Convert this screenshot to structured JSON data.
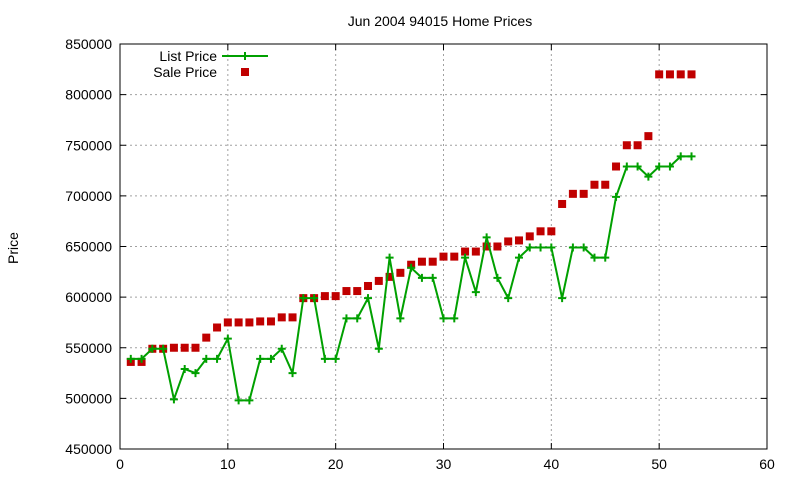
{
  "chart_data": {
    "type": "scatter",
    "title": "Jun 2004 94015 Home Prices",
    "ylabel": "Price",
    "xlabel": "",
    "xlim": [
      0,
      60
    ],
    "ylim": [
      450000,
      850000
    ],
    "xticks": [
      0,
      10,
      20,
      30,
      40,
      50,
      60
    ],
    "yticks": [
      450000,
      500000,
      550000,
      600000,
      650000,
      700000,
      750000,
      800000,
      850000
    ],
    "grid": true,
    "legend_position": "top-left",
    "series": [
      {
        "name": "List Price",
        "style": "linespoints",
        "color": "#00a000",
        "x": [
          1,
          2,
          3,
          4,
          5,
          6,
          7,
          8,
          9,
          10,
          11,
          12,
          13,
          14,
          15,
          16,
          17,
          18,
          19,
          20,
          21,
          22,
          23,
          24,
          25,
          26,
          27,
          28,
          29,
          30,
          31,
          32,
          33,
          34,
          35,
          36,
          37,
          38,
          39,
          40,
          41,
          42,
          43,
          44,
          45,
          46,
          47,
          48,
          49,
          50,
          51,
          52,
          53
        ],
        "y": [
          539000,
          539000,
          549000,
          549000,
          499000,
          529000,
          525000,
          539000,
          539000,
          559000,
          498000,
          498000,
          539000,
          539000,
          549000,
          525000,
          599000,
          599000,
          539000,
          539000,
          579000,
          579000,
          599000,
          549000,
          639000,
          579000,
          629000,
          619000,
          619000,
          579000,
          579000,
          639000,
          605000,
          659000,
          619000,
          599000,
          639000,
          649000,
          649000,
          649000,
          599000,
          649000,
          649000,
          639000,
          639000,
          699000,
          729000,
          729000,
          719000,
          729000,
          729000,
          739000,
          739000
        ]
      },
      {
        "name": "Sale Price",
        "style": "points",
        "color": "#c00000",
        "x": [
          1,
          2,
          3,
          4,
          5,
          6,
          7,
          8,
          9,
          10,
          11,
          12,
          13,
          14,
          15,
          16,
          17,
          18,
          19,
          20,
          21,
          22,
          23,
          24,
          25,
          26,
          27,
          28,
          29,
          30,
          31,
          32,
          33,
          34,
          35,
          36,
          37,
          38,
          39,
          40,
          41,
          42,
          43,
          44,
          45,
          46,
          47,
          48,
          49,
          50,
          51,
          52,
          53
        ],
        "y": [
          536000,
          536000,
          549000,
          549000,
          550000,
          550000,
          550000,
          560000,
          570000,
          575000,
          575000,
          575000,
          576000,
          576000,
          580000,
          580000,
          599000,
          599000,
          601000,
          601000,
          606000,
          606000,
          611000,
          616000,
          620000,
          624000,
          632000,
          635000,
          635000,
          640000,
          640000,
          645000,
          645000,
          650000,
          650000,
          655000,
          656000,
          660000,
          665000,
          665000,
          692000,
          702000,
          702000,
          711000,
          711000,
          729000,
          750000,
          750000,
          759000,
          820000,
          820000,
          820000,
          820000
        ]
      }
    ]
  }
}
